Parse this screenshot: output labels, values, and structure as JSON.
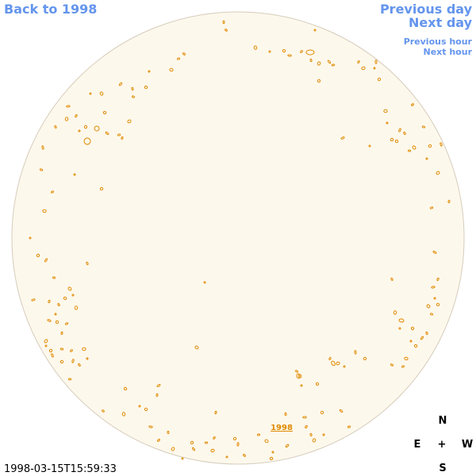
{
  "nav": {
    "back": "Back to 1998",
    "previous_day": "Previous day",
    "next_day": "Next day",
    "previous_hour": "Previous hour",
    "next_hour": "Next hour"
  },
  "compass": {
    "north": "N",
    "east": "E",
    "center": "+",
    "west": "W",
    "south": "S"
  },
  "disc_label": "1998",
  "timestamp": "1998-03-15T15:59:33"
}
